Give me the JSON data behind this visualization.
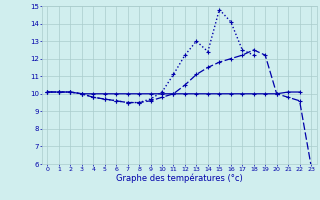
{
  "title": "Graphe des températures (°c)",
  "background_color": "#d0eeee",
  "grid_color": "#aacccc",
  "line_color": "#0000aa",
  "hours": [
    0,
    1,
    2,
    3,
    4,
    5,
    6,
    7,
    8,
    9,
    10,
    11,
    12,
    13,
    14,
    15,
    16,
    17,
    18,
    19,
    20,
    21,
    22,
    23
  ],
  "line_solid": [
    10.1,
    10.1,
    10.1,
    10.0,
    10.0,
    10.0,
    10.0,
    10.0,
    10.0,
    10.0,
    10.0,
    10.0,
    10.0,
    10.0,
    10.0,
    10.0,
    10.0,
    10.0,
    10.0,
    10.0,
    10.0,
    10.1,
    10.1,
    null
  ],
  "line_dash": [
    10.1,
    10.1,
    10.1,
    10.0,
    9.8,
    9.7,
    9.6,
    9.5,
    9.5,
    9.6,
    9.8,
    10.0,
    10.5,
    11.1,
    11.5,
    11.8,
    12.0,
    12.2,
    12.5,
    12.2,
    10.0,
    9.8,
    9.6,
    5.9
  ],
  "line_dot": [
    10.1,
    10.1,
    10.1,
    10.0,
    9.8,
    9.7,
    9.6,
    9.5,
    9.5,
    9.7,
    10.1,
    11.1,
    12.2,
    13.0,
    12.4,
    14.8,
    14.1,
    12.5,
    12.2,
    null,
    null,
    null,
    null,
    null
  ],
  "ylim": [
    6,
    15
  ],
  "yticks": [
    6,
    7,
    8,
    9,
    10,
    11,
    12,
    13,
    14,
    15
  ],
  "xticks": [
    0,
    1,
    2,
    3,
    4,
    5,
    6,
    7,
    8,
    9,
    10,
    11,
    12,
    13,
    14,
    15,
    16,
    17,
    18,
    19,
    20,
    21,
    22,
    23
  ]
}
